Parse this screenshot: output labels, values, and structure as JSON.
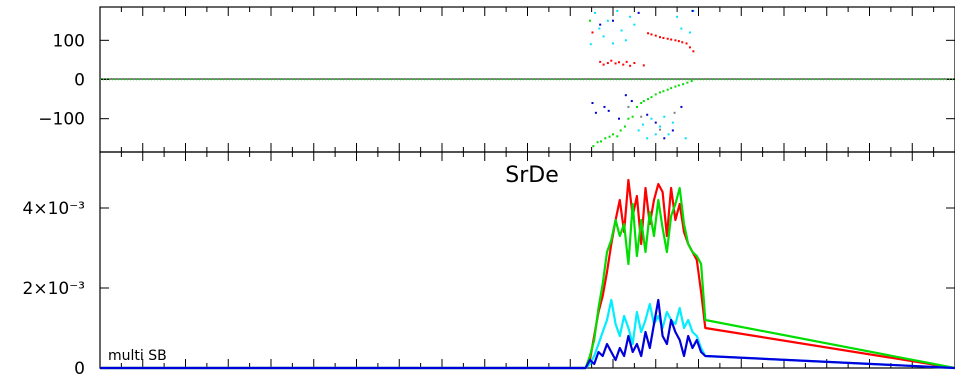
{
  "chart_data": [
    {
      "type": "scatter",
      "panel": "phase",
      "title": "",
      "xlabel": "",
      "ylabel": "",
      "xlim": [
        0,
        1
      ],
      "ylim": [
        -185,
        185
      ],
      "yticks": [
        {
          "value": 100,
          "label": "100"
        },
        {
          "value": 0,
          "label": "0"
        },
        {
          "value": -100,
          "label": "−100"
        }
      ],
      "zero_line": true,
      "series": [
        {
          "color": "#ff0000",
          "points": [
            [
              0.576,
              120
            ],
            [
              0.585,
              45
            ],
            [
              0.589,
              38
            ],
            [
              0.594,
              42
            ],
            [
              0.598,
              48
            ],
            [
              0.603,
              41
            ],
            [
              0.607,
              44
            ],
            [
              0.612,
              38
            ],
            [
              0.616,
              45
            ],
            [
              0.62,
              35
            ],
            [
              0.625,
              42
            ],
            [
              0.636,
              36
            ],
            [
              0.641,
              118
            ],
            [
              0.645,
              115
            ],
            [
              0.65,
              112
            ],
            [
              0.655,
              108
            ],
            [
              0.659,
              106
            ],
            [
              0.664,
              104
            ],
            [
              0.668,
              102
            ],
            [
              0.673,
              100
            ],
            [
              0.677,
              98
            ],
            [
              0.681,
              95
            ],
            [
              0.686,
              92
            ],
            [
              0.69,
              82
            ],
            [
              0.694,
              72
            ]
          ]
        },
        {
          "color": "#00dd00",
          "points": [
            [
              0.573,
              150
            ],
            [
              0.577,
              -170
            ],
            [
              0.582,
              -160
            ],
            [
              0.586,
              -158
            ],
            [
              0.591,
              -150
            ],
            [
              0.596,
              -146
            ],
            [
              0.6,
              -140
            ],
            [
              0.605,
              -145
            ],
            [
              0.609,
              -130
            ],
            [
              0.614,
              -120
            ],
            [
              0.618,
              -100
            ],
            [
              0.623,
              -95
            ],
            [
              0.628,
              -70
            ],
            [
              0.633,
              -60
            ],
            [
              0.636,
              -55
            ],
            [
              0.641,
              -50
            ],
            [
              0.645,
              -45
            ],
            [
              0.65,
              -38
            ],
            [
              0.655,
              -33
            ],
            [
              0.659,
              -30
            ],
            [
              0.664,
              -26
            ],
            [
              0.668,
              -22
            ],
            [
              0.673,
              -18
            ],
            [
              0.677,
              -15
            ],
            [
              0.682,
              -12
            ],
            [
              0.687,
              -8
            ],
            [
              0.692,
              -4
            ]
          ]
        },
        {
          "color": "#00e0ff",
          "points": [
            [
              0.574,
              90
            ],
            [
              0.579,
              170
            ],
            [
              0.584,
              130
            ],
            [
              0.589,
              110
            ],
            [
              0.594,
              150
            ],
            [
              0.6,
              92
            ],
            [
              0.605,
              175
            ],
            [
              0.61,
              125
            ],
            [
              0.615,
              100
            ],
            [
              0.62,
              160
            ],
            [
              0.625,
              140
            ],
            [
              0.63,
              -130
            ],
            [
              0.635,
              -115
            ],
            [
              0.64,
              -150
            ],
            [
              0.645,
              -100
            ],
            [
              0.65,
              -140
            ],
            [
              0.655,
              -120
            ],
            [
              0.66,
              -95
            ],
            [
              0.665,
              -140
            ],
            [
              0.67,
              -110
            ],
            [
              0.675,
              160
            ],
            [
              0.68,
              130
            ],
            [
              0.685,
              -150
            ],
            [
              0.69,
              120
            ],
            [
              0.694,
              175
            ]
          ]
        },
        {
          "color": "#0000cc",
          "points": [
            [
              0.576,
              -60
            ],
            [
              0.58,
              -85
            ],
            [
              0.585,
              140
            ],
            [
              0.59,
              -70
            ],
            [
              0.595,
              -80
            ],
            [
              0.6,
              150
            ],
            [
              0.607,
              -100
            ],
            [
              0.615,
              -40
            ],
            [
              0.622,
              -55
            ],
            [
              0.63,
              170
            ],
            [
              0.64,
              -90
            ],
            [
              0.65,
              -110
            ],
            [
              0.66,
              -150
            ],
            [
              0.67,
              -130
            ],
            [
              0.68,
              -70
            ],
            [
              0.693,
              175
            ]
          ]
        },
        {
          "color": "#808080",
          "points": [
            [
              0.618,
              -70
            ],
            [
              0.633,
              -95
            ],
            [
              0.655,
              -128
            ],
            [
              0.672,
              -85
            ]
          ]
        }
      ]
    },
    {
      "type": "line",
      "panel": "amplitude",
      "title": "SrDe",
      "annotation": "multi SB",
      "xlabel": "",
      "ylabel": "",
      "xlim": [
        0,
        1
      ],
      "ylim": [
        0,
        0.0054
      ],
      "yticks": [
        {
          "value": 0.004,
          "label": "4×10⁻³"
        },
        {
          "value": 0.002,
          "label": "2×10⁻³"
        },
        {
          "value": 0,
          "label": "0"
        }
      ],
      "series": [
        {
          "color": "#ff0000",
          "x": [
            0,
            0.568,
            0.573,
            0.578,
            0.583,
            0.588,
            0.593,
            0.598,
            0.603,
            0.608,
            0.613,
            0.618,
            0.623,
            0.628,
            0.633,
            0.638,
            0.643,
            0.648,
            0.653,
            0.658,
            0.663,
            0.668,
            0.673,
            0.678,
            0.683,
            0.688,
            0.693,
            0.698,
            0.703,
            0.708,
            1
          ],
          "y": [
            0,
            0,
            0.0002,
            0.0008,
            0.0014,
            0.0018,
            0.0024,
            0.0031,
            0.0037,
            0.0042,
            0.0034,
            0.0047,
            0.0038,
            0.0043,
            0.0031,
            0.0045,
            0.0036,
            0.0042,
            0.0046,
            0.0044,
            0.0033,
            0.0045,
            0.0037,
            0.0041,
            0.0034,
            0.0031,
            0.0029,
            0.0027,
            0.0019,
            0.001,
            0
          ]
        },
        {
          "color": "#00dd00",
          "x": [
            0,
            0.568,
            0.573,
            0.578,
            0.583,
            0.588,
            0.593,
            0.598,
            0.603,
            0.608,
            0.613,
            0.618,
            0.623,
            0.628,
            0.633,
            0.638,
            0.643,
            0.648,
            0.653,
            0.658,
            0.663,
            0.668,
            0.673,
            0.678,
            0.683,
            0.688,
            0.693,
            0.698,
            0.703,
            0.708,
            1
          ],
          "y": [
            0,
            0,
            0.0003,
            0.0007,
            0.0015,
            0.0021,
            0.0029,
            0.0032,
            0.0037,
            0.0033,
            0.0036,
            0.0026,
            0.0041,
            0.0028,
            0.0037,
            0.0029,
            0.0039,
            0.0033,
            0.0042,
            0.0035,
            0.0029,
            0.0038,
            0.0041,
            0.0045,
            0.0036,
            0.0031,
            0.0029,
            0.0028,
            0.0026,
            0.0012,
            0
          ]
        },
        {
          "color": "#00eeff",
          "x": [
            0,
            0.568,
            0.573,
            0.578,
            0.583,
            0.588,
            0.593,
            0.598,
            0.603,
            0.608,
            0.613,
            0.618,
            0.623,
            0.628,
            0.633,
            0.638,
            0.643,
            0.648,
            0.653,
            0.658,
            0.663,
            0.668,
            0.673,
            0.678,
            0.683,
            0.688,
            0.693,
            0.698,
            0.703,
            0.708,
            1
          ],
          "y": [
            0,
            0,
            0.0001,
            0.0003,
            0.0006,
            0.0009,
            0.0012,
            0.0017,
            0.0011,
            0.0008,
            0.0013,
            0.001,
            0.0006,
            0.0014,
            0.0009,
            0.0012,
            0.0016,
            0.0011,
            0.0013,
            0.001,
            0.0014,
            0.0012,
            0.0011,
            0.0015,
            0.001,
            0.0012,
            0.0009,
            0.0008,
            0.0005,
            0.0003,
            0
          ]
        },
        {
          "color": "#0000dd",
          "x": [
            0,
            0.568,
            0.573,
            0.578,
            0.583,
            0.588,
            0.593,
            0.598,
            0.603,
            0.608,
            0.613,
            0.618,
            0.623,
            0.628,
            0.633,
            0.638,
            0.643,
            0.648,
            0.653,
            0.658,
            0.663,
            0.668,
            0.673,
            0.678,
            0.683,
            0.688,
            0.693,
            0.698,
            0.703,
            0.708,
            1
          ],
          "y": [
            0,
            0,
            0.0002,
            0.0001,
            0.0004,
            0.0003,
            0.0006,
            0.0004,
            0.0002,
            0.0005,
            0.0003,
            0.0008,
            0.0004,
            0.0006,
            0.0003,
            0.0009,
            0.0005,
            0.0011,
            0.0017,
            0.0008,
            0.0006,
            0.0012,
            0.0009,
            0.0007,
            0.0003,
            0.0008,
            0.0005,
            0.0007,
            0.0004,
            0.0003,
            0
          ]
        }
      ]
    }
  ]
}
